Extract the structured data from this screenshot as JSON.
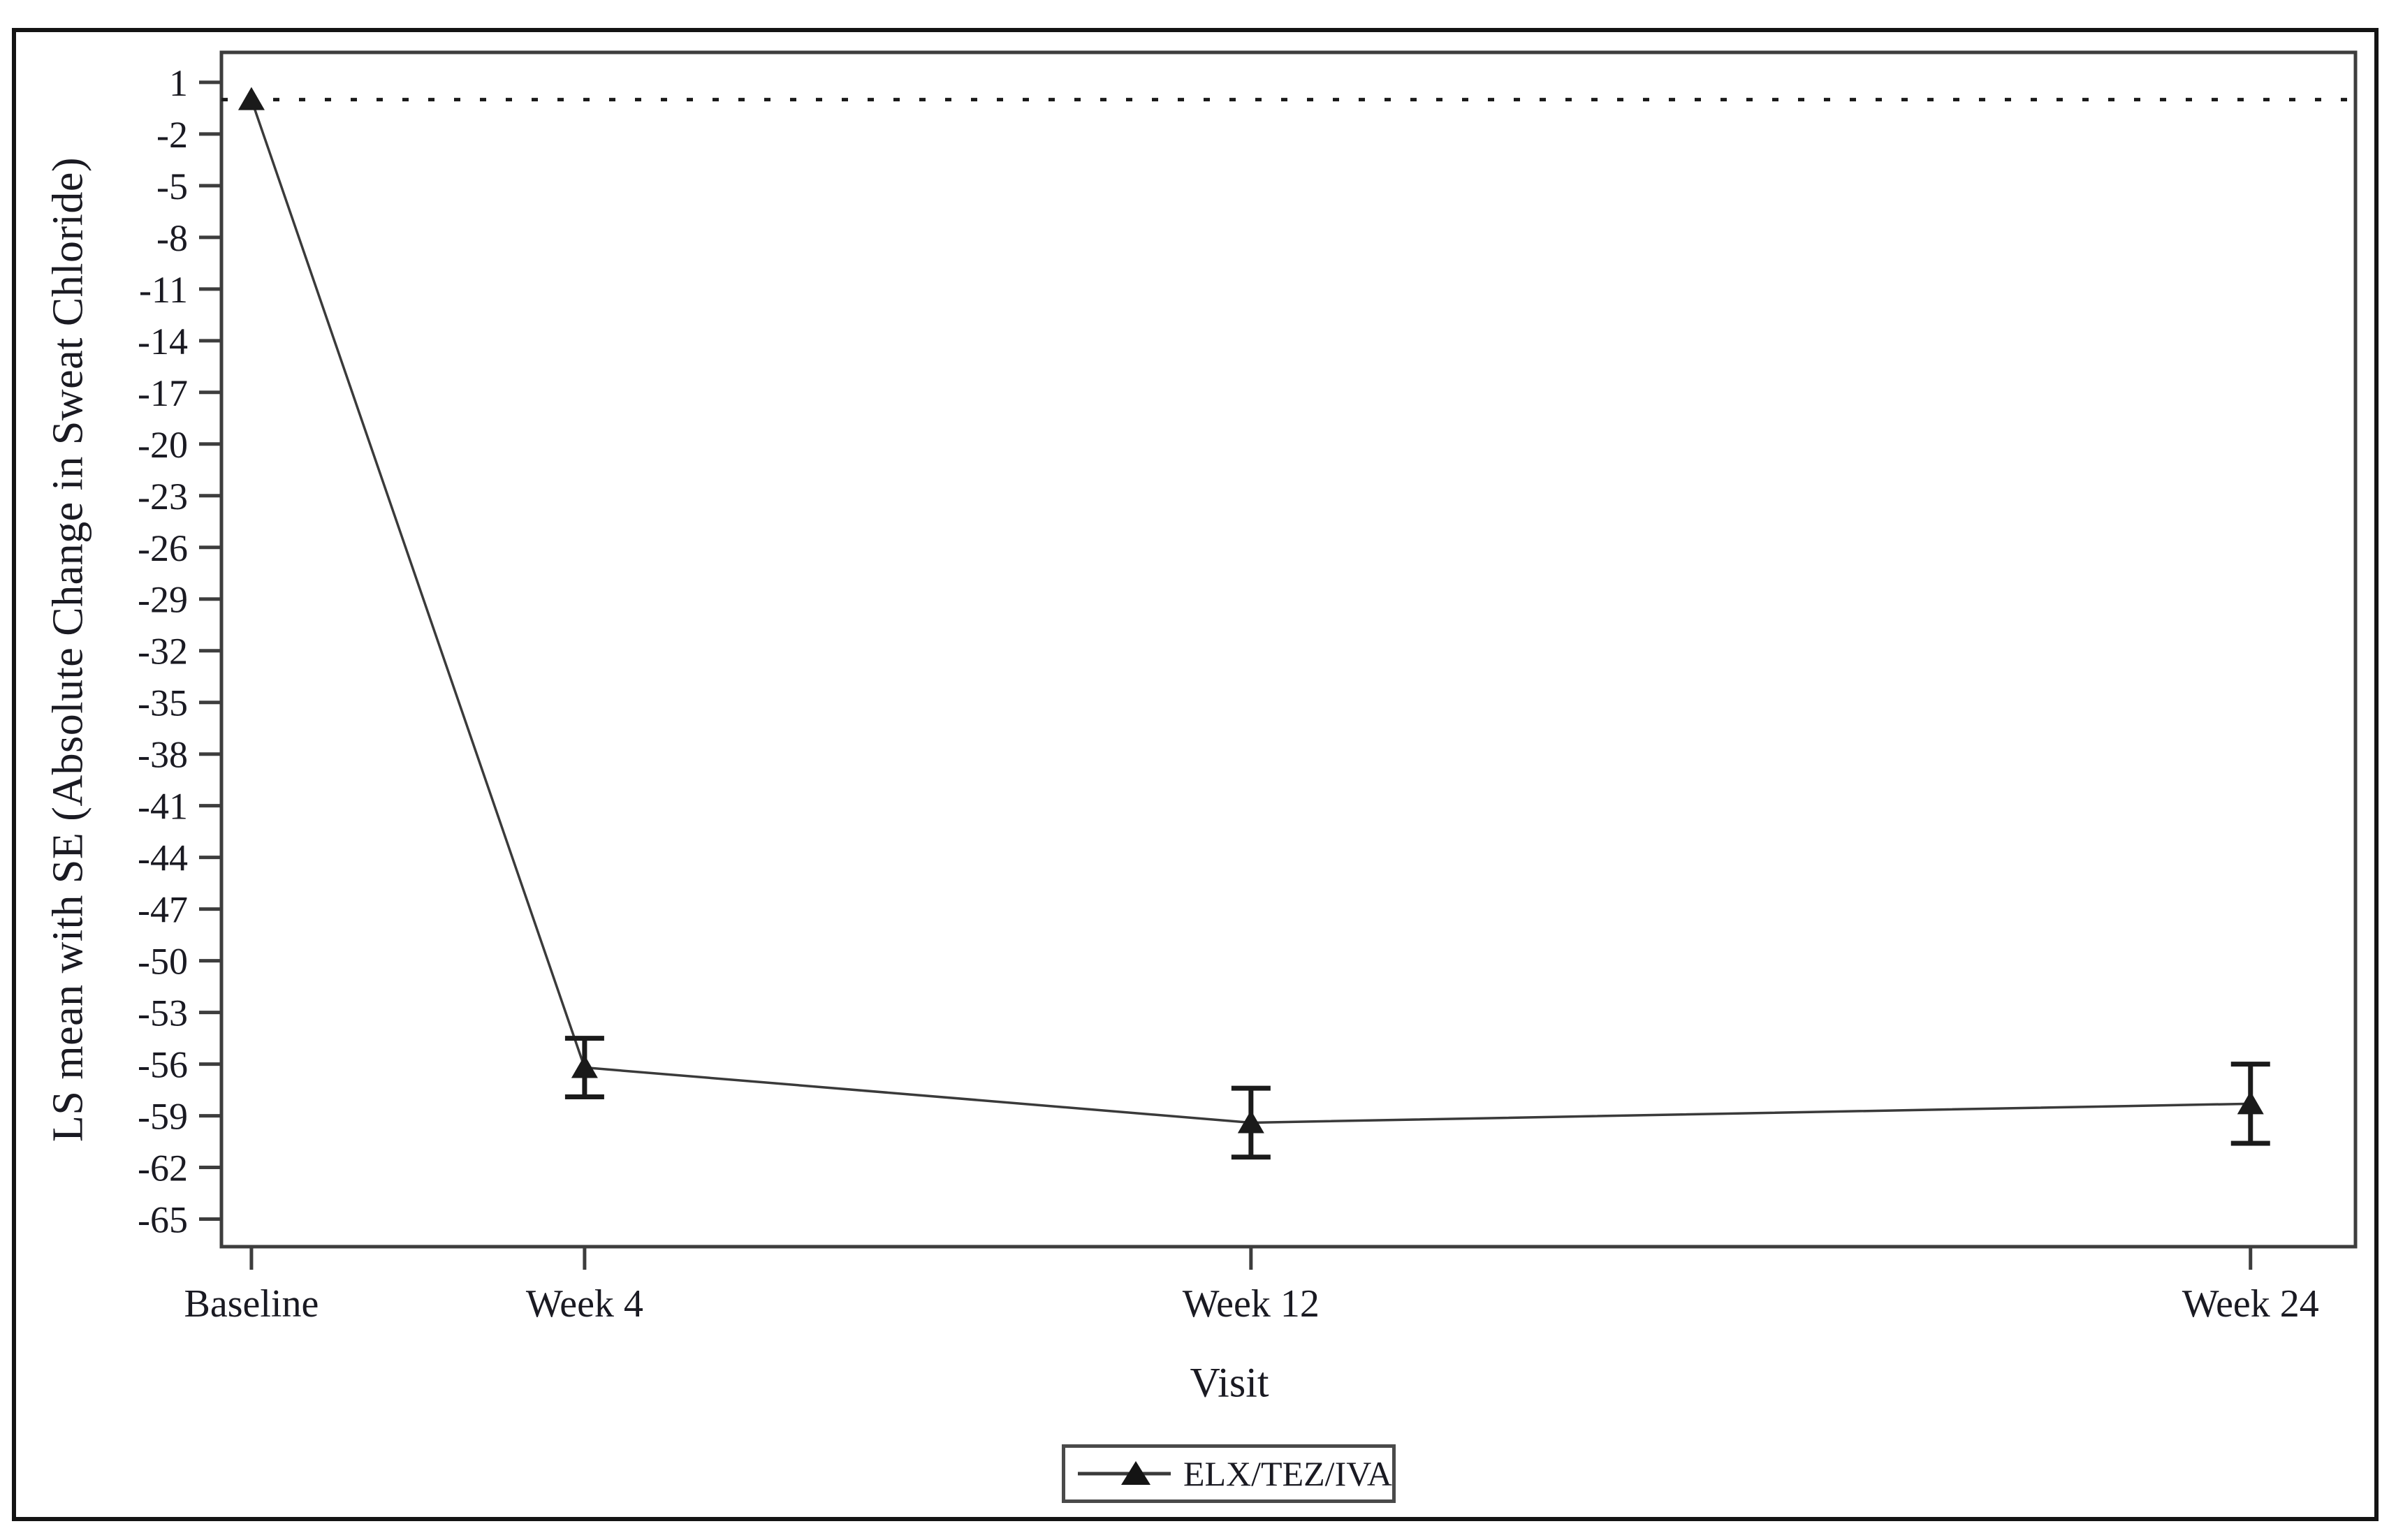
{
  "colors": {
    "background": "#ffffff",
    "ink": "#1a1a1a",
    "series_line": "#3a3a3a",
    "frame": "#3d3d3d",
    "text": "#1a1a22",
    "legend_border": "#4a4a4a",
    "outer_border": "#141414"
  },
  "chart_data": {
    "type": "line",
    "title": "",
    "xlabel": "Visit",
    "ylabel": "LS mean with SE (Absolute Change in Sweat Chloride)",
    "categories": [
      "Baseline",
      "Week 4",
      "Week 12",
      "Week 24"
    ],
    "x_weeks": [
      0,
      4,
      12,
      24
    ],
    "series": [
      {
        "name": "ELX/TEZ/IVA",
        "marker": "filled-triangle",
        "values": [
          0,
          -56.2,
          -59.4,
          -58.3
        ],
        "se": [
          null,
          1.7,
          2.0,
          2.3
        ]
      }
    ],
    "y_ticks": [
      1,
      -2,
      -5,
      -8,
      -11,
      -14,
      -17,
      -20,
      -23,
      -26,
      -29,
      -32,
      -35,
      -38,
      -41,
      -44,
      -47,
      -50,
      -53,
      -56,
      -59,
      -62,
      -65
    ],
    "ylim": [
      -66.6,
      2.74
    ],
    "xlim_weeks": [
      -0.36,
      25.26
    ],
    "reference_line": {
      "y": 0,
      "style": "dotted"
    },
    "grid": false,
    "legend_position": "bottom-center"
  }
}
